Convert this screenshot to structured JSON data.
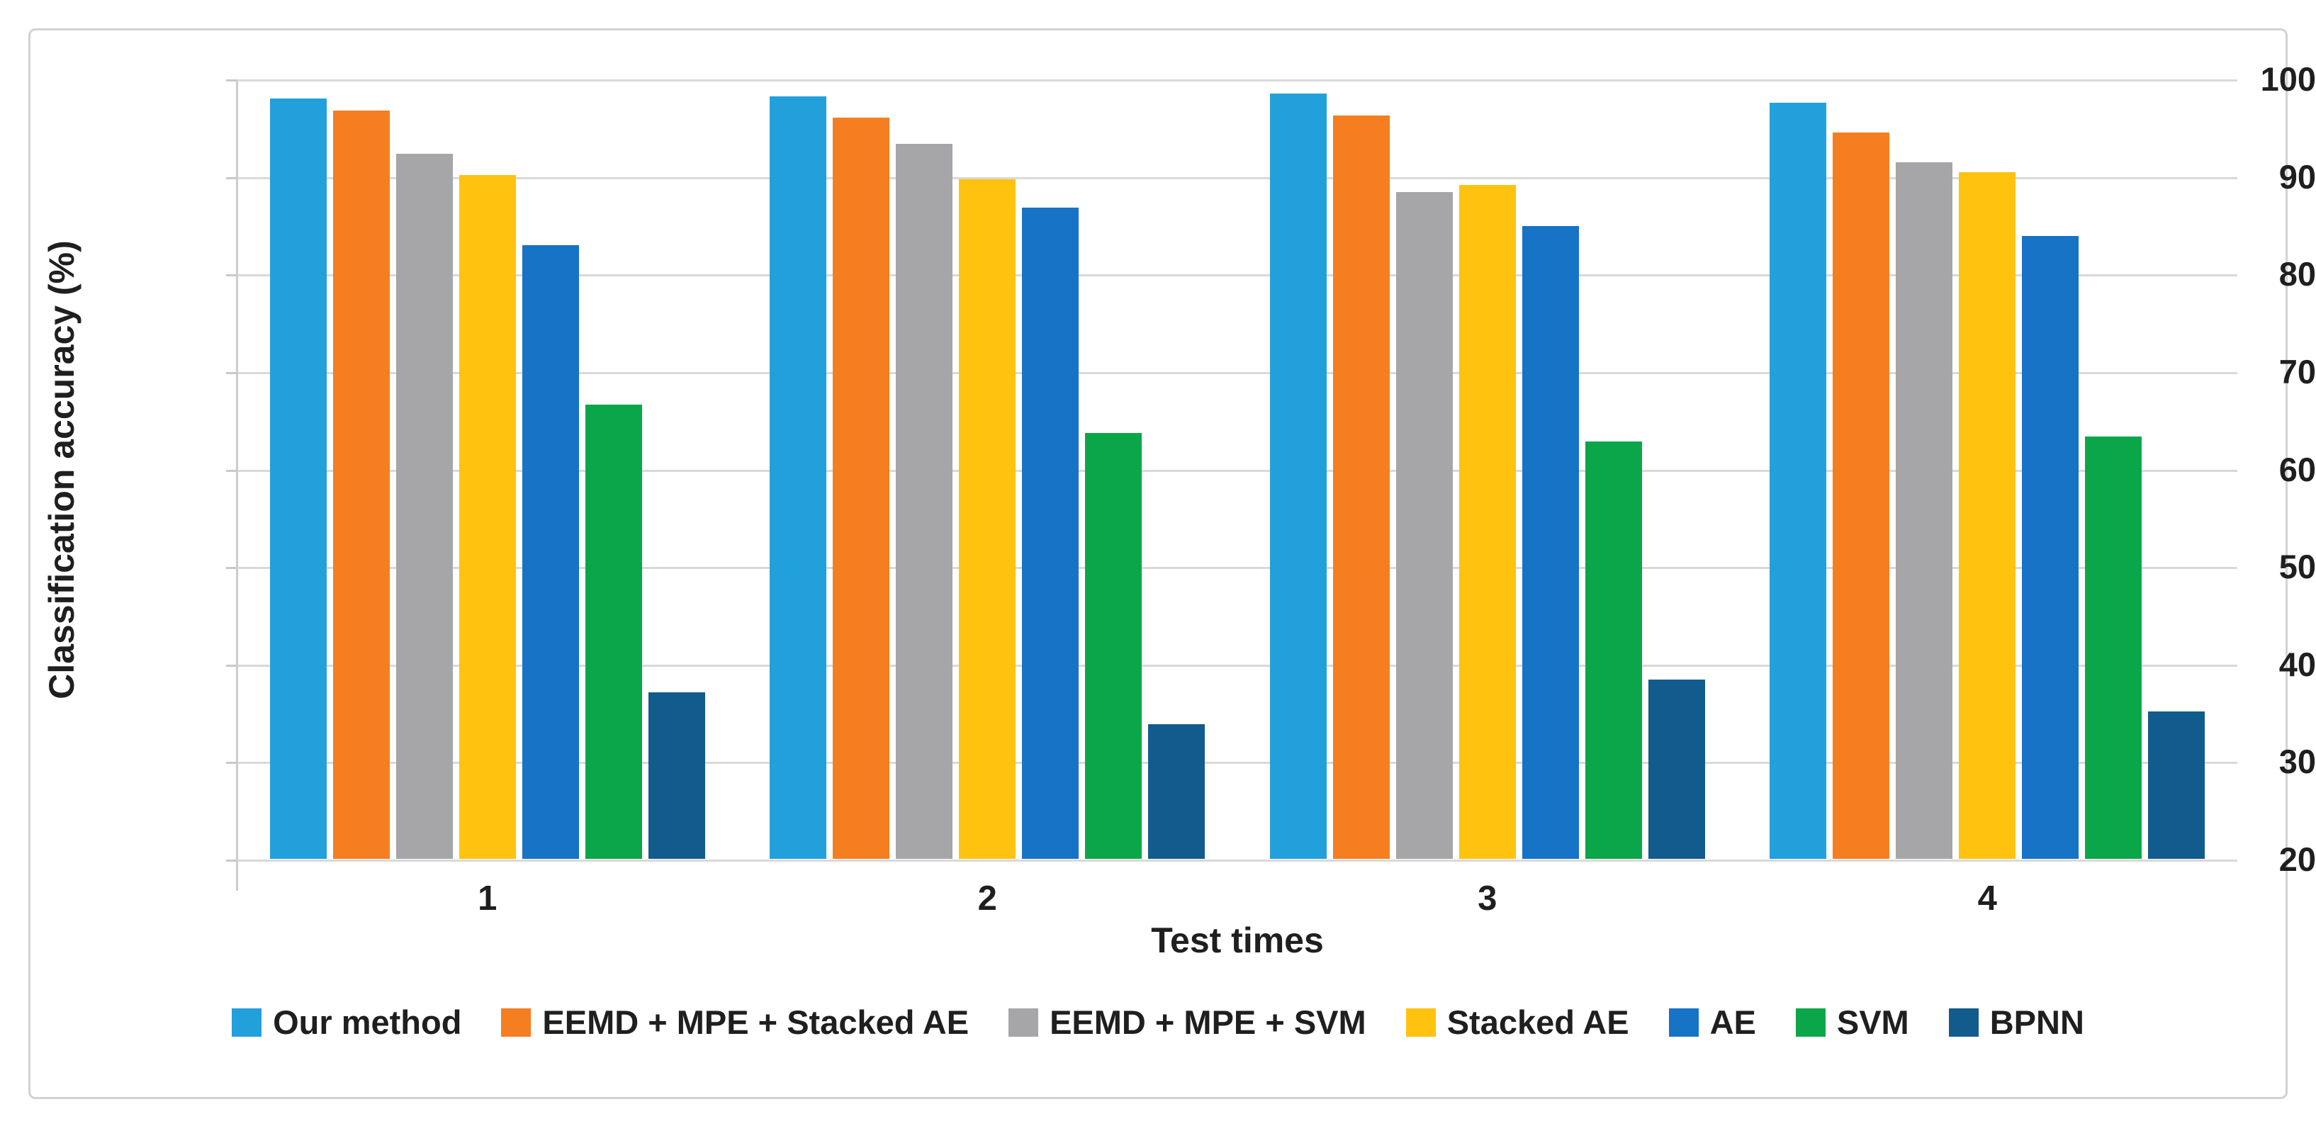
{
  "figure": {
    "background": "#FFFFFF",
    "border_color": "#D2D2D2"
  },
  "style": {
    "gridline_color": "#D9D9D9",
    "axis_line_color": "#C9C9C9",
    "text_color": "#1F1F1F"
  },
  "chart_data": {
    "type": "bar",
    "title": "",
    "xlabel": "Test times",
    "ylabel": "Classification accuracy (%)",
    "ylim": [
      20,
      100
    ],
    "yticks": [
      100,
      90,
      80,
      70,
      60,
      50,
      40,
      30,
      20
    ],
    "grid": "horizontal",
    "legend_position": "bottom",
    "categories": [
      "1",
      "2",
      "3",
      "4"
    ],
    "series": [
      {
        "name": "Our method",
        "color": "#22A0DC",
        "values": [
          98.0,
          98.2,
          98.5,
          97.5
        ]
      },
      {
        "name": "EEMD + MPE + Stacked AE",
        "color": "#F57E20",
        "values": [
          96.7,
          96.0,
          96.2,
          94.5
        ]
      },
      {
        "name": "EEMD + MPE + SVM",
        "color": "#A6A6A8",
        "values": [
          92.3,
          93.3,
          88.4,
          91.4
        ]
      },
      {
        "name": "Stacked AE",
        "color": "#FFC20E",
        "values": [
          90.1,
          89.7,
          89.1,
          90.4
        ]
      },
      {
        "name": "AE",
        "color": "#1673C6",
        "values": [
          82.9,
          86.8,
          84.9,
          83.9
        ]
      },
      {
        "name": "SVM",
        "color": "#0CA64A",
        "values": [
          66.6,
          63.7,
          62.8,
          63.3
        ]
      },
      {
        "name": "BPNN",
        "color": "#115C8C",
        "values": [
          37.1,
          33.8,
          38.4,
          35.1
        ]
      }
    ]
  }
}
